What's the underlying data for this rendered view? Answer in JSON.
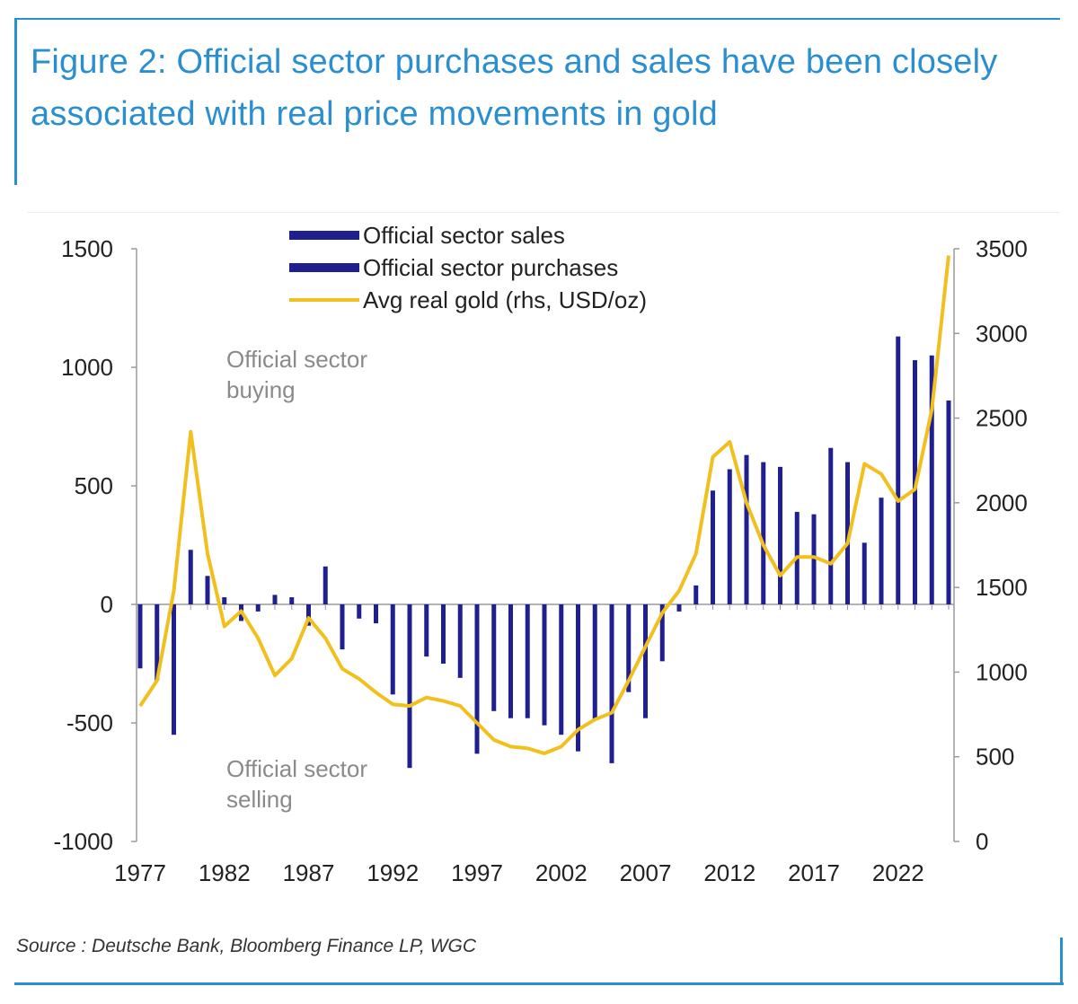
{
  "title": "Figure 2: Official sector purchases and sales have been closely associated with real price movements in gold",
  "source": "Source : Deutsche Bank, Bloomberg Finance LP, WGC",
  "colors": {
    "bars": "#1f1f8f",
    "line": "#f2c01e",
    "accent": "#2a8fd0",
    "annotation": "#8a8a8a"
  },
  "chart_data": {
    "type": "bar",
    "x_ticks": [
      "1977",
      "1982",
      "1987",
      "1992",
      "1997",
      "2002",
      "2007",
      "2012",
      "2017",
      "2022"
    ],
    "y_left": {
      "min": -1000,
      "max": 1500,
      "ticks": [
        "-1000",
        "-500",
        "0",
        "500",
        "1000",
        "1500"
      ]
    },
    "y_right": {
      "min": 0,
      "max": 3500,
      "ticks": [
        "0",
        "500",
        "1000",
        "1500",
        "2000",
        "2500",
        "3000",
        "3500"
      ]
    },
    "legend": {
      "position": "top-center",
      "entries": [
        "Official sector sales",
        "Official sector purchases",
        "Avg real gold (rhs, USD/oz)"
      ]
    },
    "annotations": {
      "buying": [
        "Official sector",
        "buying"
      ],
      "selling": [
        "Official sector",
        "selling"
      ]
    },
    "years": [
      1977,
      1978,
      1979,
      1980,
      1981,
      1982,
      1983,
      1984,
      1985,
      1986,
      1987,
      1988,
      1989,
      1990,
      1991,
      1992,
      1993,
      1994,
      1995,
      1996,
      1997,
      1998,
      1999,
      2000,
      2001,
      2002,
      2003,
      2004,
      2005,
      2006,
      2007,
      2008,
      2009,
      2010,
      2011,
      2012,
      2013,
      2014,
      2015,
      2016,
      2017,
      2018,
      2019,
      2020,
      2021,
      2022,
      2023,
      2024,
      2025
    ],
    "series": [
      {
        "name": "Official sector purchases / sales",
        "axis": "left",
        "values": [
          -270,
          -320,
          -550,
          230,
          120,
          30,
          -70,
          -30,
          40,
          30,
          -90,
          160,
          -190,
          -60,
          -80,
          -380,
          -690,
          -220,
          -250,
          -310,
          -630,
          -450,
          -480,
          -480,
          -510,
          -550,
          -620,
          -490,
          -670,
          -370,
          -480,
          -240,
          -30,
          80,
          480,
          570,
          630,
          600,
          580,
          390,
          380,
          660,
          600,
          260,
          450,
          1130,
          1030,
          1050,
          860
        ]
      },
      {
        "name": "Avg real gold (rhs, USD/oz)",
        "axis": "right",
        "values": [
          800,
          950,
          1480,
          2420,
          1700,
          1270,
          1360,
          1200,
          980,
          1080,
          1320,
          1200,
          1020,
          960,
          880,
          810,
          800,
          850,
          830,
          800,
          700,
          600,
          560,
          550,
          520,
          560,
          660,
          720,
          760,
          950,
          1150,
          1350,
          1480,
          1700,
          2270,
          2360,
          2000,
          1750,
          1570,
          1680,
          1680,
          1640,
          1760,
          2230,
          2170,
          2010,
          2080,
          2550,
          3460
        ]
      }
    ]
  }
}
